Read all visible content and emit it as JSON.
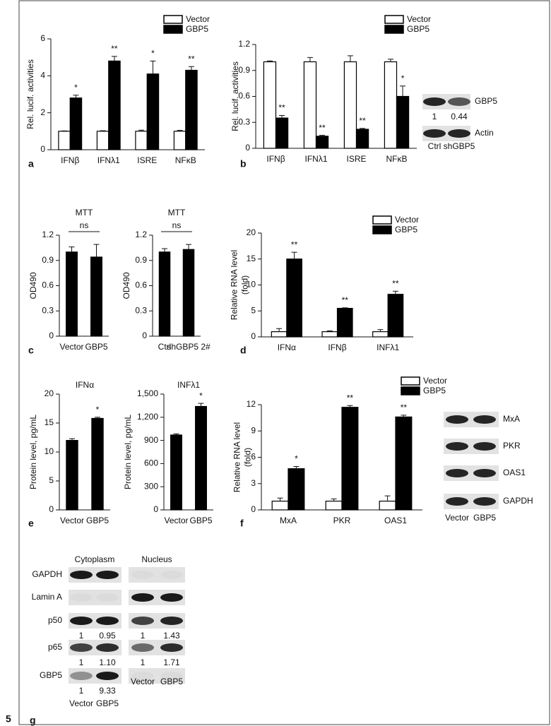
{
  "figure_number": "5",
  "chart_data": [
    {
      "type": "bar",
      "panel": "a",
      "y_label": [
        "Rel. lucif. activities"
      ],
      "categories": [
        "IFNβ",
        "IFNλ1",
        "ISRE",
        "NFκB"
      ],
      "series": [
        {
          "name": "Vector",
          "color": "#ffffff",
          "values": [
            1,
            1,
            1,
            1
          ],
          "errors": [
            0.02,
            0.03,
            0.06,
            0.05
          ]
        },
        {
          "name": "GBP5",
          "color": "#000000",
          "values": [
            2.8,
            4.8,
            4.1,
            4.3
          ],
          "errors": [
            0.15,
            0.25,
            0.7,
            0.2
          ],
          "annotations": [
            "*",
            "**",
            "*",
            "**"
          ]
        }
      ],
      "ylim": [
        0,
        6
      ],
      "yticks": [
        0,
        2,
        4,
        6
      ]
    },
    {
      "type": "bar",
      "panel": "b",
      "y_label": [
        "Rel. lucif. activities"
      ],
      "categories": [
        "IFNβ",
        "IFNλ1",
        "ISRE",
        "NFκB"
      ],
      "series": [
        {
          "name": "Vector",
          "color": "#ffffff",
          "values": [
            1,
            1,
            1,
            1
          ],
          "errors": [
            0.01,
            0.05,
            0.07,
            0.03
          ]
        },
        {
          "name": "GBP5",
          "color": "#000000",
          "values": [
            0.35,
            0.14,
            0.22,
            0.6
          ],
          "errors": [
            0.03,
            0.01,
            0.01,
            0.12
          ],
          "annotations": [
            "**",
            "**",
            "**",
            "*"
          ]
        }
      ],
      "ylim": [
        0,
        1.2
      ],
      "yticks": [
        0,
        0.3,
        0.6,
        0.9,
        1.2
      ]
    },
    {
      "type": "bar",
      "panel": "c",
      "title": "MTT",
      "annotation": "ns",
      "y_label": [
        "OD490"
      ],
      "categories": [
        "Vector",
        "GBP5"
      ],
      "values": [
        1.0,
        0.94
      ],
      "errors": [
        0.06,
        0.15
      ],
      "color": "#000000",
      "ylim": [
        0,
        1.2
      ],
      "yticks": [
        0,
        0.3,
        0.6,
        0.9,
        1.2
      ]
    },
    {
      "type": "bar",
      "title": "MTT",
      "annotation": "ns",
      "y_label": [
        "OD490"
      ],
      "categories": [
        "Ctrl",
        "shGBP5 2#"
      ],
      "values": [
        1.0,
        1.03
      ],
      "errors": [
        0.04,
        0.06
      ],
      "color": "#000000",
      "ylim": [
        0,
        1.2
      ],
      "yticks": [
        0,
        0.3,
        0.6,
        0.9,
        1.2
      ]
    },
    {
      "type": "bar",
      "panel": "d",
      "y_label": [
        "Relative RNA level",
        "(fold)"
      ],
      "categories": [
        "IFNα",
        "IFNβ",
        "INFλ1"
      ],
      "series": [
        {
          "name": "Vector",
          "color": "#ffffff",
          "values": [
            1,
            1,
            1
          ],
          "errors": [
            0.6,
            0.15,
            0.4
          ]
        },
        {
          "name": "GBP5",
          "color": "#000000",
          "values": [
            15,
            5.5,
            8.2
          ],
          "errors": [
            1.3,
            0.1,
            0.6
          ],
          "annotations": [
            "**",
            "**",
            "**"
          ]
        }
      ],
      "ylim": [
        0,
        20
      ],
      "yticks": [
        0,
        5,
        10,
        15,
        20
      ]
    },
    {
      "type": "bar",
      "panel": "e",
      "title": "IFNα",
      "y_label": [
        "Protein level, pg/mL"
      ],
      "categories": [
        "Vector",
        "GBP5"
      ],
      "values": [
        12,
        15.8
      ],
      "errors": [
        0.3,
        0.2
      ],
      "color": "#000000",
      "annotations": [
        null,
        "*"
      ],
      "ylim": [
        0,
        20
      ],
      "yticks": [
        0,
        5,
        10,
        15,
        20
      ]
    },
    {
      "type": "bar",
      "title": "INFλ1",
      "y_label": [
        "Protein level, pg/mL"
      ],
      "categories": [
        "Vector",
        "GBP5"
      ],
      "values": [
        970,
        1340
      ],
      "errors": [
        15,
        40
      ],
      "color": "#000000",
      "annotations": [
        null,
        "*"
      ],
      "ylim": [
        0,
        1500
      ],
      "yticks": [
        0,
        300,
        600,
        900,
        {
          "value": 1200,
          "label": "1,200"
        },
        {
          "value": 1500,
          "label": "1,500"
        }
      ]
    },
    {
      "type": "bar",
      "panel": "f",
      "y_label": [
        "Relative RNA level",
        "(fold)"
      ],
      "categories": [
        "MxA",
        "PKR",
        "OAS1"
      ],
      "series": [
        {
          "name": "Vector",
          "color": "#ffffff",
          "values": [
            1,
            1,
            1
          ],
          "errors": [
            0.35,
            0.25,
            0.6
          ]
        },
        {
          "name": "GBP5",
          "color": "#000000",
          "values": [
            4.7,
            11.7,
            10.6
          ],
          "errors": [
            0.25,
            0.2,
            0.2
          ],
          "annotations": [
            "*",
            "**",
            "**"
          ]
        }
      ],
      "ylim": [
        0,
        12
      ],
      "yticks": [
        0,
        3,
        6,
        9,
        12
      ]
    }
  ],
  "blots": [
    {
      "lanes": [
        "Ctrl",
        "shGBP5"
      ],
      "rows": [
        {
          "label": "GBP5",
          "quant": [
            "1",
            "0.44"
          ]
        },
        {
          "label": "Actin"
        }
      ]
    },
    {
      "lanes": [
        "Vector",
        "GBP5"
      ],
      "rows": [
        {
          "label": "MxA"
        },
        {
          "label": "PKR"
        },
        {
          "label": "OAS1"
        },
        {
          "label": "GAPDH"
        }
      ]
    },
    {
      "panel": "g",
      "headers": [
        "Cytoplasm",
        "Nucleus"
      ],
      "rows": [
        {
          "label": "GAPDH"
        },
        {
          "label": "Lamin A"
        },
        {
          "label": "p50",
          "quant": [
            "1",
            "0.95",
            "1",
            "1.43"
          ]
        },
        {
          "label": "p65",
          "quant": [
            "1",
            "1.10",
            "1",
            "1.71"
          ]
        },
        {
          "label": "GBP5",
          "quant": [
            "1",
            "9.33"
          ]
        }
      ],
      "lanes_nucleus": [
        "Vector",
        "GBP5"
      ],
      "lanes_cytoplasm": [
        "Vector",
        "GBP5"
      ]
    }
  ]
}
